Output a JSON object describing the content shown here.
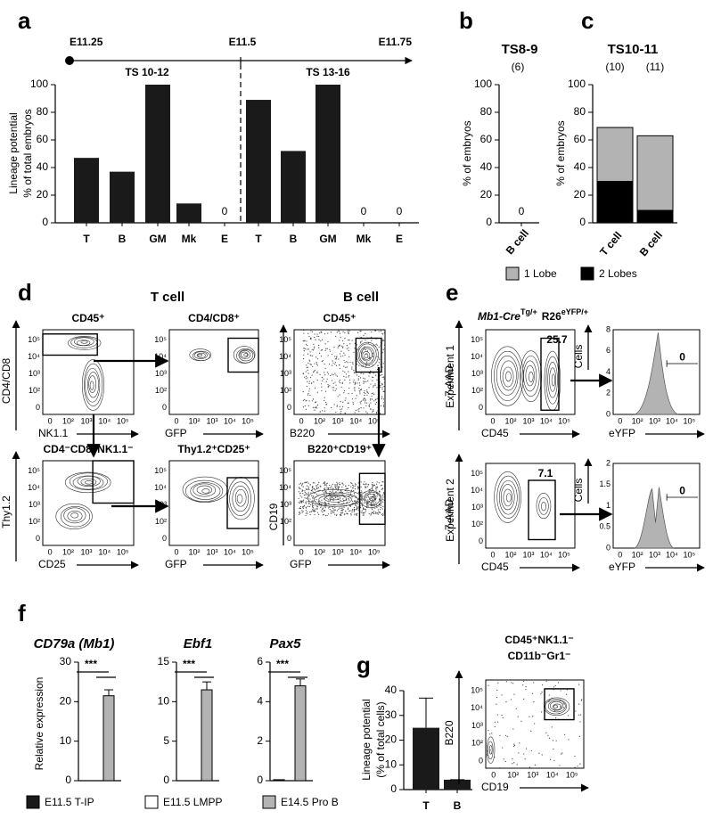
{
  "panel_labels": [
    "a",
    "b",
    "c",
    "d",
    "e",
    "f",
    "g"
  ],
  "chart_data": [
    {
      "type": "bar",
      "ylabel": [
        "Lineage potential",
        "% of total embryos"
      ],
      "timeline": [
        "E11.25",
        "E11.5",
        "E11.75"
      ],
      "stages": [
        "TS 10-12",
        "TS 13-16"
      ],
      "categories": [
        "T",
        "B",
        "GM",
        "Mk",
        "E",
        "T",
        "B",
        "GM",
        "Mk",
        "E"
      ],
      "values": [
        47,
        37,
        100,
        14,
        0,
        89,
        52,
        100,
        0,
        0
      ],
      "color": "#1a1a1a",
      "ylim": [
        0,
        100
      ],
      "yticks": [
        0,
        20,
        40,
        60,
        80,
        100
      ]
    },
    {
      "type": "bar",
      "title": "TS8-9",
      "counts": [
        "(6)"
      ],
      "ylabel": "% of embryos",
      "categories": [
        "B cell"
      ],
      "values": [
        0
      ],
      "color": "#1a1a1a",
      "ylim": [
        0,
        100
      ],
      "yticks": [
        0,
        20,
        40,
        60,
        80,
        100
      ]
    },
    {
      "type": "stacked_bar",
      "title": "TS10-11",
      "counts": [
        "(10)",
        "(11)"
      ],
      "ylabel": "% of embryos",
      "categories": [
        "T cell",
        "B cell"
      ],
      "series": [
        {
          "name": "2 Lobes",
          "color": "#000000",
          "values": [
            30,
            9
          ]
        },
        {
          "name": "1 Lobe",
          "color": "#b3b3b3",
          "values": [
            39,
            54
          ]
        }
      ],
      "ylim": [
        0,
        100
      ],
      "yticks": [
        0,
        20,
        40,
        60,
        80,
        100
      ]
    },
    {
      "type": "facet_bar",
      "ylabel": "Relative expression",
      "categories": [
        "CD79a (Mb1)",
        "Ebf1",
        "Pax5"
      ],
      "annotations": [
        "***",
        "***",
        "***"
      ],
      "series": [
        {
          "name": "E11.5 T-IP",
          "color": "#1a1a1a",
          "values": [
            0,
            0,
            0.05
          ]
        },
        {
          "name": "E11.5 LMPP",
          "color": "#ffffff",
          "values": [
            0,
            0,
            0
          ]
        },
        {
          "name": "E14.5 Pro B",
          "color": "#b3b3b3",
          "values": [
            21.5,
            11.5,
            4.8
          ],
          "errors": [
            1.5,
            1,
            0.35
          ]
        }
      ],
      "ylim": [
        [
          0,
          30
        ],
        [
          0,
          15
        ],
        [
          0,
          6
        ]
      ],
      "yticks": [
        [
          0,
          10,
          20,
          30
        ],
        [
          0,
          5,
          10,
          15
        ],
        [
          0,
          2,
          4,
          6
        ]
      ]
    },
    {
      "type": "bar",
      "ylabel": [
        "Lineage potential",
        "(% of total cells)"
      ],
      "categories": [
        "T",
        "B"
      ],
      "values": [
        25,
        4
      ],
      "errors": [
        12,
        0
      ],
      "color": "#1a1a1a",
      "ylim": [
        0,
        40
      ],
      "yticks": [
        0,
        10,
        20,
        30,
        40
      ]
    }
  ],
  "flow": {
    "log_ticks": [
      "0",
      "10²",
      "10³",
      "10⁴",
      "10⁵"
    ],
    "d": {
      "headers": [
        "T cell",
        "B cell"
      ],
      "plots": [
        {
          "title": "CD45⁺",
          "x": "NK1.1",
          "y": "CD4/CD8"
        },
        {
          "title": "CD4/CD8⁺",
          "x": "GFP"
        },
        {
          "title": "CD45⁺",
          "x": "B220"
        },
        {
          "title": "CD4⁻CD8⁻NK1.1⁻",
          "x": "CD25",
          "y": "Thy1.2"
        },
        {
          "title": "Thy1.2⁺CD25⁺",
          "x": "GFP"
        },
        {
          "title": "B220⁺CD19⁺",
          "x": "GFP"
        }
      ],
      "shared_y": "CD19"
    },
    "e": {
      "title": [
        "Mb1-Cre",
        "Tg/+",
        "R26",
        "eYFP/+"
      ],
      "x": "CD45",
      "y": "7-AAD",
      "hx": "eYFP",
      "hy": "Cells",
      "experiments": [
        {
          "label": "Experiment 1",
          "gate": "25.7",
          "hist_ticks": [
            0,
            2,
            4,
            6,
            8
          ],
          "hist_gate": "0"
        },
        {
          "label": "Experiment 2",
          "gate": "7.1",
          "hist_ticks": [
            0,
            0.5,
            1,
            1.5,
            2
          ],
          "hist_gate": "0"
        }
      ]
    },
    "g": {
      "title": [
        "CD45⁺NK1.1⁻",
        "CD11b⁻Gr1⁻"
      ],
      "x": "CD19",
      "y": "B220"
    }
  }
}
